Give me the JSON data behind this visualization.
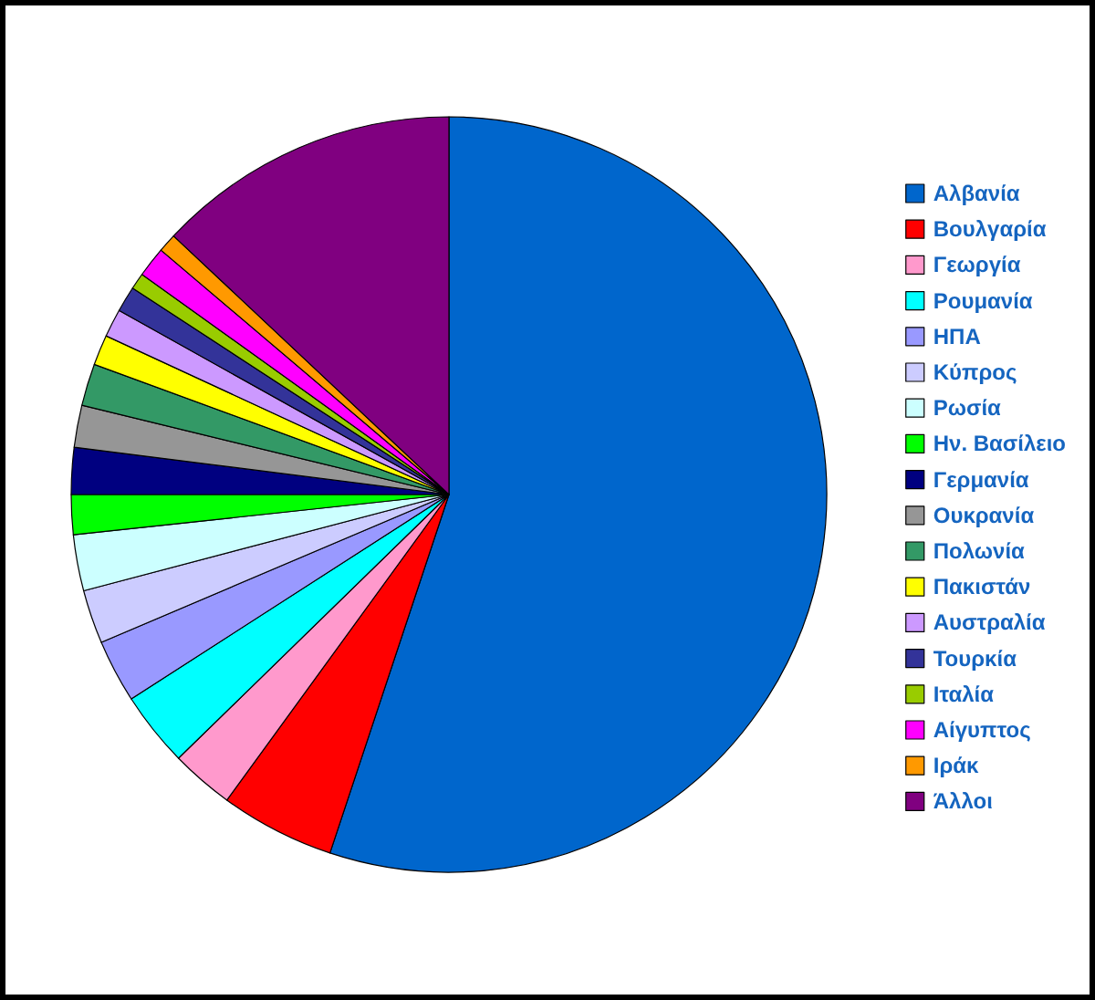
{
  "chart_data": {
    "type": "pie",
    "legend": "right",
    "categories": [
      "Αλβανία",
      "Βουλγαρία",
      "Γεωργία",
      "Ρουμανία",
      "ΗΠΑ",
      "Κύπρος",
      "Ρωσία",
      "Ην. Βασίλειο",
      "Γερμανία",
      "Ουκρανία",
      "Πολωνία",
      "Πακιστάν",
      "Αυστραλία",
      "Τουρκία",
      "Ιταλία",
      "Αίγυπτος",
      "Ιράκ",
      "Άλλοι"
    ],
    "values": [
      55.1,
      4.9,
      2.7,
      3.2,
      2.7,
      2.3,
      2.4,
      1.7,
      2.0,
      1.8,
      1.8,
      1.3,
      1.2,
      1.1,
      0.7,
      1.3,
      0.8,
      13.0
    ],
    "colors": [
      "#0066cc",
      "#ff0000",
      "#ff99cc",
      "#00ffff",
      "#9999ff",
      "#ccccff",
      "#ccffff",
      "#00ff00",
      "#000080",
      "#969696",
      "#339966",
      "#ffff00",
      "#cc99ff",
      "#333399",
      "#99cc00",
      "#ff00ff",
      "#ff9900",
      "#800080"
    ]
  }
}
